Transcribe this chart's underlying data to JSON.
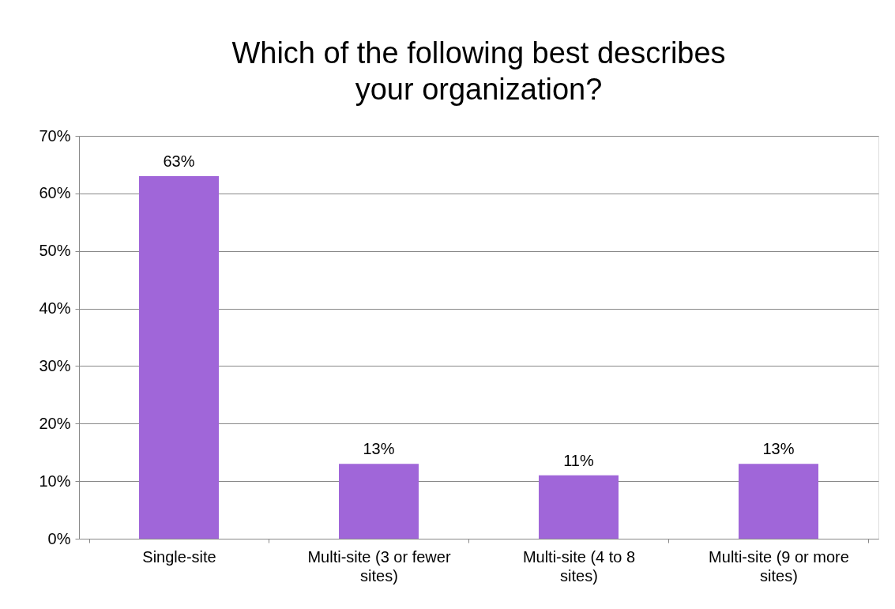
{
  "chart_data": {
    "type": "bar",
    "title": "Which of the following best describes your organization?",
    "categories": [
      "Single-site",
      "Multi-site (3 or fewer sites)",
      "Multi-site (4 to 8 sites)",
      "Multi-site (9 or more sites)"
    ],
    "values": [
      63,
      13,
      11,
      13
    ],
    "color": "#a066d9",
    "value_labels": [
      "63%",
      "13%",
      "11%",
      "13%"
    ],
    "ylim": [
      0,
      70
    ],
    "yticks": [
      {
        "value": 0,
        "label": "0%"
      },
      {
        "value": 10,
        "label": "10%"
      },
      {
        "value": 20,
        "label": "20%"
      },
      {
        "value": 30,
        "label": "30%"
      },
      {
        "value": 40,
        "label": "40%"
      },
      {
        "value": 50,
        "label": "50%"
      },
      {
        "value": 60,
        "label": "60%"
      },
      {
        "value": 70,
        "label": "70%"
      }
    ],
    "grid": "y"
  }
}
